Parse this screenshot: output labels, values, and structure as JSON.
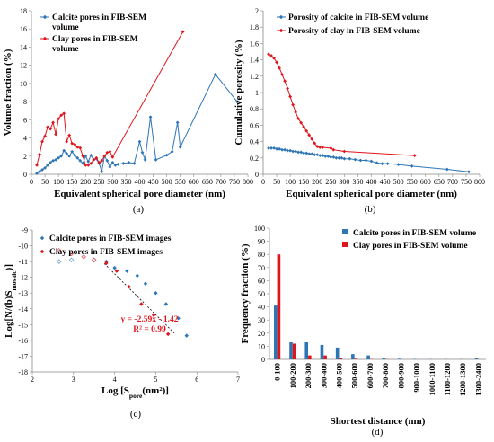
{
  "chart_data": [
    {
      "id": "a",
      "type": "line",
      "panel_label": "(a)",
      "xlabel": "Equivalent spherical pore diameter (nm)",
      "ylabel": "Volume fraction (%)",
      "xlim": [
        0,
        800
      ],
      "ylim": [
        0,
        18
      ],
      "xticks": [
        0,
        50,
        100,
        150,
        200,
        250,
        300,
        350,
        400,
        450,
        500,
        550,
        600,
        650,
        700,
        750,
        800
      ],
      "yticks": [
        0,
        2,
        4,
        6,
        8,
        10,
        12,
        14,
        16,
        18
      ],
      "legend_position": "top-left",
      "series": [
        {
          "name": "Calcite pores in FIB-SEM volume",
          "color": "#2e75b6",
          "marker": "diamond",
          "x": [
            20,
            30,
            40,
            50,
            60,
            70,
            80,
            90,
            100,
            110,
            120,
            130,
            140,
            150,
            160,
            170,
            180,
            190,
            200,
            210,
            220,
            230,
            240,
            250,
            260,
            270,
            280,
            290,
            300,
            310,
            320,
            340,
            360,
            380,
            400,
            410,
            420,
            440,
            460,
            500,
            520,
            540,
            550,
            680,
            760
          ],
          "y": [
            0.1,
            0.3,
            0.5,
            0.7,
            1.0,
            1.3,
            1.5,
            1.6,
            1.8,
            2.0,
            2.6,
            2.3,
            2.0,
            2.5,
            2.1,
            1.8,
            1.5,
            1.2,
            2.0,
            1.4,
            2.1,
            1.6,
            1.7,
            1.2,
            0.3,
            2.0,
            1.5,
            0.8,
            1.3,
            1.0,
            1.1,
            1.2,
            1.3,
            1.2,
            3.6,
            2.4,
            1.6,
            6.3,
            1.6,
            2.1,
            2.5,
            5.7,
            3.0,
            11.0,
            8.0
          ]
        },
        {
          "name": "Clay pores in FIB-SEM volume",
          "color": "#e0151c",
          "marker": "diamond",
          "x": [
            20,
            30,
            40,
            50,
            60,
            70,
            80,
            90,
            100,
            110,
            120,
            130,
            140,
            150,
            160,
            170,
            180,
            190,
            200,
            210,
            220,
            230,
            240,
            250,
            260,
            270,
            280,
            290,
            300,
            560
          ],
          "y": [
            1.0,
            2.2,
            3.6,
            4.2,
            5.2,
            5.0,
            5.7,
            4.4,
            6.1,
            6.5,
            6.7,
            3.6,
            4.3,
            3.4,
            3.3,
            3.0,
            2.9,
            2.0,
            1.0,
            1.0,
            1.2,
            1.6,
            1.8,
            1.3,
            1.5,
            2.0,
            2.4,
            2.5,
            1.9,
            15.7
          ]
        }
      ]
    },
    {
      "id": "b",
      "type": "line",
      "panel_label": "(b)",
      "xlabel": "Equivalent spherical pore diameter (nm)",
      "ylabel": "Cumulative porosity (%)",
      "xlim": [
        0,
        800
      ],
      "ylim": [
        0,
        2.0
      ],
      "xticks": [
        0,
        50,
        100,
        150,
        200,
        250,
        300,
        350,
        400,
        450,
        500,
        550,
        600,
        650,
        700,
        750,
        800
      ],
      "yticks": [
        0,
        0.2,
        0.4,
        0.6,
        0.8,
        1.0,
        1.2,
        1.4,
        1.6,
        1.8,
        2.0
      ],
      "legend_position": "top-right",
      "series": [
        {
          "name": "Porosity of calcite in FIB-SEM volume",
          "color": "#2e75b6",
          "marker": "diamond",
          "x": [
            20,
            30,
            40,
            50,
            60,
            70,
            80,
            90,
            100,
            110,
            120,
            130,
            140,
            150,
            160,
            170,
            180,
            190,
            200,
            210,
            220,
            230,
            240,
            250,
            260,
            270,
            280,
            290,
            300,
            320,
            340,
            360,
            380,
            400,
            420,
            440,
            460,
            500,
            550,
            680,
            760
          ],
          "y": [
            0.32,
            0.32,
            0.32,
            0.31,
            0.31,
            0.3,
            0.3,
            0.29,
            0.29,
            0.28,
            0.28,
            0.27,
            0.27,
            0.26,
            0.26,
            0.25,
            0.25,
            0.24,
            0.24,
            0.23,
            0.23,
            0.22,
            0.22,
            0.21,
            0.21,
            0.2,
            0.2,
            0.2,
            0.19,
            0.19,
            0.18,
            0.17,
            0.17,
            0.16,
            0.14,
            0.13,
            0.13,
            0.12,
            0.1,
            0.06,
            0.03
          ]
        },
        {
          "name": "Porosity of clay in FIB-SEM volume",
          "color": "#e0151c",
          "marker": "diamond",
          "x": [
            20,
            30,
            40,
            50,
            60,
            70,
            80,
            90,
            100,
            110,
            120,
            130,
            140,
            150,
            160,
            170,
            180,
            190,
            200,
            210,
            220,
            250,
            260,
            300,
            560
          ],
          "y": [
            1.47,
            1.45,
            1.42,
            1.37,
            1.3,
            1.22,
            1.14,
            1.05,
            0.95,
            0.85,
            0.76,
            0.68,
            0.63,
            0.58,
            0.53,
            0.48,
            0.43,
            0.38,
            0.34,
            0.33,
            0.33,
            0.32,
            0.3,
            0.28,
            0.23
          ]
        }
      ]
    },
    {
      "id": "c",
      "type": "scatter",
      "panel_label": "(c)",
      "xlabel": "Log [S",
      "xlabel_sub": "pore",
      "xlabel_end": "(nm²)]",
      "ylabel": "Log[N/(b)S",
      "ylabel_sub": "mosaic",
      "ylabel_end": ")]",
      "xlim": [
        2,
        7
      ],
      "ylim": [
        -18,
        -9
      ],
      "xticks": [
        2,
        3,
        4,
        5,
        6,
        7
      ],
      "yticks": [
        -9,
        -10,
        -11,
        -12,
        -13,
        -14,
        -15,
        -16,
        -17,
        -18
      ],
      "legend_position": "top-left",
      "fit_equation": "y = -2.59x - 1.42",
      "fit_r2": "R² = 0.99",
      "fit_line": {
        "x": [
          3.75,
          5.45
        ],
        "y": [
          -11.13,
          -15.54
        ]
      },
      "series": [
        {
          "name": "Calcite pores in FIB-SEM images",
          "color": "#2e75b6",
          "marker": "diamond",
          "x": [
            2.65,
            2.95,
            3.5,
            3.8,
            4.0,
            4.3,
            4.55,
            4.75,
            5.0,
            5.25,
            5.55,
            5.75
          ],
          "y": [
            -11.0,
            -10.9,
            -10.9,
            -11.0,
            -11.4,
            -11.6,
            -11.9,
            -12.4,
            -13.0,
            -13.7,
            -14.6,
            -15.7
          ],
          "hollow_count": 3
        },
        {
          "name": "Clay pores in FIB-SEM images",
          "color": "#e0151c",
          "marker": "diamond",
          "x": [
            2.65,
            2.95,
            3.25,
            3.5,
            3.8,
            4.05,
            4.35,
            4.65,
            4.95,
            5.3
          ],
          "y": [
            -10.3,
            -10.5,
            -10.7,
            -10.9,
            -11.1,
            -11.6,
            -12.6,
            -13.7,
            -14.4,
            -15.6
          ],
          "hollow_count": 4
        }
      ]
    },
    {
      "id": "d",
      "type": "bar",
      "panel_label": "(d)",
      "xlabel": "Shortest distance (nm)",
      "ylabel": "Frequency fraction (%)",
      "ylim": [
        0,
        100
      ],
      "yticks": [
        0,
        10,
        20,
        30,
        40,
        50,
        60,
        70,
        80,
        90,
        100
      ],
      "legend_position": "top-right",
      "categories": [
        "0-100",
        "100-200",
        "200-300",
        "300-400",
        "400-500",
        "500-600",
        "600-700",
        "700-800",
        "800-900",
        "900-1000",
        "1000-1100",
        "1100-1200",
        "1200-1300",
        "1300-2400"
      ],
      "series": [
        {
          "name": "Calcite pores in FIB-SEM volume",
          "color": "#2e75b6",
          "values": [
            41,
            13,
            13,
            11,
            9,
            4,
            3,
            1,
            0.5,
            0.3,
            0.2,
            0.2,
            0.2,
            1
          ]
        },
        {
          "name": "Clay pores in FIB-SEM volume",
          "color": "#e0151c",
          "values": [
            80,
            12,
            3,
            3,
            1,
            0.5,
            0.2,
            0.2,
            0,
            0,
            0,
            0,
            0,
            0
          ]
        }
      ]
    }
  ]
}
